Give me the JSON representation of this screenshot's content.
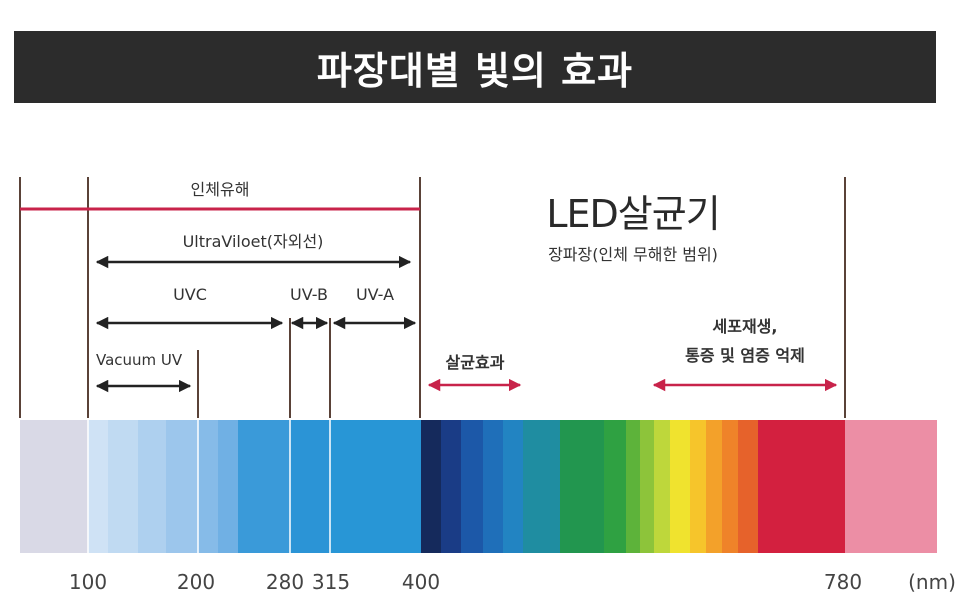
{
  "title": "파장대별 빛의 효과",
  "labels": {
    "harmful": "인체유해",
    "ultraviolet": "UltraViloet(자외선)",
    "uvc": "UVC",
    "uvb": "UV-B",
    "uva": "UV-A",
    "vacuum_uv": "Vacuum UV",
    "led_title": "LED살균기",
    "led_subtitle": "장파장(인체 무해한 범위)",
    "sterilization": "살균효과",
    "regeneration_line1": "세포재생,",
    "regeneration_line2": "통증 및 염증 억제"
  },
  "ticks": [
    "100",
    "200",
    "280",
    "315",
    "400",
    "780"
  ],
  "unit": "(nm)",
  "colors": {
    "title_bg": "#2c2c2c",
    "harmful_line": "#c8234a",
    "sterilization_arrow": "#c8234a",
    "regeneration_arrow": "#c8234a",
    "black_arrow": "#222222"
  }
}
